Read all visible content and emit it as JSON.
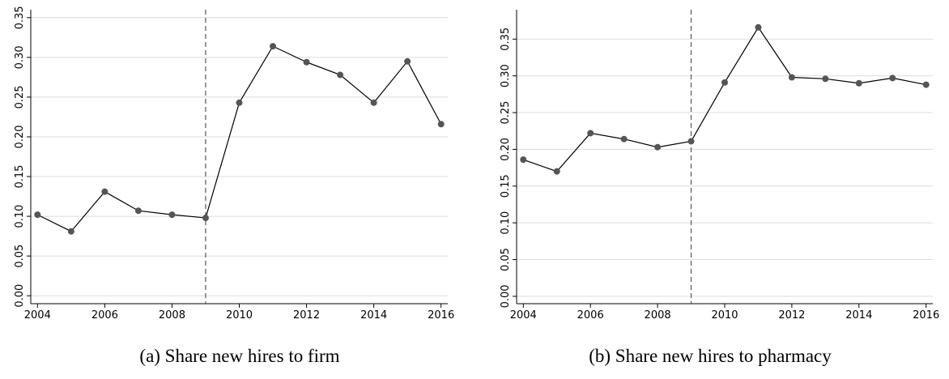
{
  "chart_data": [
    {
      "type": "line",
      "caption": "(a) Share new hires to firm",
      "x": [
        2004,
        2005,
        2006,
        2007,
        2008,
        2009,
        2010,
        2011,
        2012,
        2013,
        2014,
        2015,
        2016
      ],
      "values": [
        0.102,
        0.081,
        0.131,
        0.107,
        0.102,
        0.098,
        0.243,
        0.314,
        0.294,
        0.278,
        0.243,
        0.295,
        0.216
      ],
      "color": "#555555",
      "line_color": "#000000",
      "xlim": [
        2003.8,
        2016.2
      ],
      "xticks": [
        2004,
        2006,
        2008,
        2010,
        2012,
        2014,
        2016
      ],
      "ylim": [
        -0.01,
        0.36
      ],
      "yticks": [
        {
          "value": 0,
          "label": "0.00"
        },
        {
          "value": 0.05,
          "label": "0.05"
        },
        {
          "value": 0.1,
          "label": "0.10"
        },
        {
          "value": 0.15,
          "label": "0.15"
        },
        {
          "value": 0.2,
          "label": "0.20"
        },
        {
          "value": 0.25,
          "label": "0.25"
        },
        {
          "value": 0.3,
          "label": "0.30"
        },
        {
          "value": 0.35,
          "label": "0.35"
        }
      ],
      "grid": true,
      "vline": 2009
    },
    {
      "type": "line",
      "caption": "(b) Share new hires to pharmacy",
      "x": [
        2004,
        2005,
        2006,
        2007,
        2008,
        2009,
        2010,
        2011,
        2012,
        2013,
        2014,
        2015,
        2016
      ],
      "values": [
        0.186,
        0.17,
        0.222,
        0.214,
        0.203,
        0.211,
        0.291,
        0.366,
        0.298,
        0.296,
        0.29,
        0.297,
        0.288
      ],
      "color": "#555555",
      "line_color": "#000000",
      "xlim": [
        2003.8,
        2016.2
      ],
      "xticks": [
        2004,
        2006,
        2008,
        2010,
        2012,
        2014,
        2016
      ],
      "ylim": [
        -0.01,
        0.39
      ],
      "yticks": [
        {
          "value": 0,
          "label": "0.00"
        },
        {
          "value": 0.05,
          "label": "0.05"
        },
        {
          "value": 0.1,
          "label": "0.10"
        },
        {
          "value": 0.15,
          "label": "0.15"
        },
        {
          "value": 0.2,
          "label": "0.20"
        },
        {
          "value": 0.25,
          "label": "0.25"
        },
        {
          "value": 0.3,
          "label": "0.30"
        },
        {
          "value": 0.35,
          "label": "0.35"
        }
      ],
      "grid": true,
      "vline": 2009
    }
  ]
}
